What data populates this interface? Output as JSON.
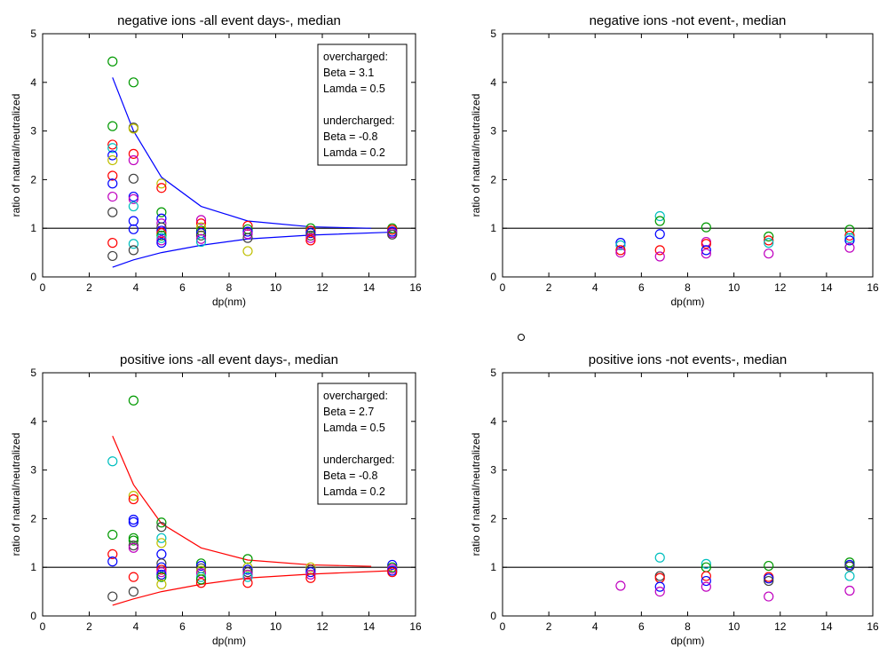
{
  "chart_data": [
    {
      "type": "scatter",
      "title": "negative ions -all event days-, median",
      "xlabel": "dp(nm)",
      "ylabel": "ratio of natural/neutralized",
      "xlim": [
        0,
        16
      ],
      "ylim": [
        0,
        5
      ],
      "xticks": [
        0,
        2,
        4,
        6,
        8,
        10,
        12,
        14,
        16
      ],
      "yticks": [
        0,
        1,
        2,
        3,
        4,
        5
      ],
      "grid": false,
      "reference_line_y": 1,
      "annotation": [
        "overcharged:",
        "Beta = 3.1",
        "Lamda = 0.5",
        "",
        "undercharged:",
        "Beta = -0.8",
        "Lamda = 0.2"
      ],
      "annotation_position": "top-right",
      "curve_color": "#0000ff",
      "fit_curves": [
        {
          "x": [
            3.0,
            3.9,
            5.1,
            6.8,
            8.8,
            11.5,
            14.1
          ],
          "y": [
            4.1,
            3.0,
            2.05,
            1.45,
            1.15,
            1.03,
            1.0
          ]
        },
        {
          "x": [
            3.0,
            3.9,
            5.1,
            6.8,
            8.8,
            11.5,
            15.0
          ],
          "y": [
            0.2,
            0.35,
            0.5,
            0.65,
            0.78,
            0.86,
            0.92
          ]
        }
      ],
      "points": [
        {
          "x": 3.0,
          "y": 4.43,
          "color": "#009900"
        },
        {
          "x": 3.0,
          "y": 3.1,
          "color": "#009900"
        },
        {
          "x": 3.0,
          "y": 2.72,
          "color": "#ff0000"
        },
        {
          "x": 3.0,
          "y": 2.65,
          "color": "#00bfbf"
        },
        {
          "x": 3.0,
          "y": 2.5,
          "color": "#0000ff"
        },
        {
          "x": 3.0,
          "y": 2.4,
          "color": "#bfbf00"
        },
        {
          "x": 3.0,
          "y": 2.08,
          "color": "#ff0000"
        },
        {
          "x": 3.0,
          "y": 1.92,
          "color": "#0000ff"
        },
        {
          "x": 3.0,
          "y": 1.65,
          "color": "#bf00bf"
        },
        {
          "x": 3.0,
          "y": 1.33,
          "color": "#404040"
        },
        {
          "x": 3.0,
          "y": 0.7,
          "color": "#ff0000"
        },
        {
          "x": 3.0,
          "y": 0.43,
          "color": "#404040"
        },
        {
          "x": 3.9,
          "y": 4.0,
          "color": "#009900"
        },
        {
          "x": 3.9,
          "y": 3.07,
          "color": "#404040"
        },
        {
          "x": 3.9,
          "y": 3.05,
          "color": "#bfbf00"
        },
        {
          "x": 3.9,
          "y": 2.53,
          "color": "#ff0000"
        },
        {
          "x": 3.9,
          "y": 2.4,
          "color": "#bf00bf"
        },
        {
          "x": 3.9,
          "y": 2.02,
          "color": "#404040"
        },
        {
          "x": 3.9,
          "y": 1.65,
          "color": "#0000ff"
        },
        {
          "x": 3.9,
          "y": 1.6,
          "color": "#bf00bf"
        },
        {
          "x": 3.9,
          "y": 1.45,
          "color": "#00bfbf"
        },
        {
          "x": 3.9,
          "y": 1.15,
          "color": "#0000ff"
        },
        {
          "x": 3.9,
          "y": 0.98,
          "color": "#0000ff"
        },
        {
          "x": 3.9,
          "y": 0.68,
          "color": "#00bfbf"
        },
        {
          "x": 3.9,
          "y": 0.55,
          "color": "#404040"
        },
        {
          "x": 5.1,
          "y": 1.92,
          "color": "#bfbf00"
        },
        {
          "x": 5.1,
          "y": 1.83,
          "color": "#ff0000"
        },
        {
          "x": 5.1,
          "y": 1.33,
          "color": "#009900"
        },
        {
          "x": 5.1,
          "y": 1.2,
          "color": "#0000ff"
        },
        {
          "x": 5.1,
          "y": 1.1,
          "color": "#bf00bf"
        },
        {
          "x": 5.1,
          "y": 1.02,
          "color": "#404040"
        },
        {
          "x": 5.1,
          "y": 0.95,
          "color": "#0000ff"
        },
        {
          "x": 5.1,
          "y": 0.9,
          "color": "#ff0000"
        },
        {
          "x": 5.1,
          "y": 0.85,
          "color": "#009900"
        },
        {
          "x": 5.1,
          "y": 0.8,
          "color": "#00bfbf"
        },
        {
          "x": 5.1,
          "y": 0.75,
          "color": "#bf00bf"
        },
        {
          "x": 5.1,
          "y": 0.7,
          "color": "#0000ff"
        },
        {
          "x": 6.8,
          "y": 1.17,
          "color": "#bf00bf"
        },
        {
          "x": 6.8,
          "y": 1.1,
          "color": "#ff0000"
        },
        {
          "x": 6.8,
          "y": 1.02,
          "color": "#bfbf00"
        },
        {
          "x": 6.8,
          "y": 0.95,
          "color": "#009900"
        },
        {
          "x": 6.8,
          "y": 0.9,
          "color": "#0000ff"
        },
        {
          "x": 6.8,
          "y": 0.85,
          "color": "#404040"
        },
        {
          "x": 6.8,
          "y": 0.78,
          "color": "#bf00bf"
        },
        {
          "x": 6.8,
          "y": 0.72,
          "color": "#00bfbf"
        },
        {
          "x": 8.8,
          "y": 1.05,
          "color": "#ff0000"
        },
        {
          "x": 8.8,
          "y": 0.98,
          "color": "#009900"
        },
        {
          "x": 8.8,
          "y": 0.93,
          "color": "#0000ff"
        },
        {
          "x": 8.8,
          "y": 0.88,
          "color": "#bf00bf"
        },
        {
          "x": 8.8,
          "y": 0.8,
          "color": "#404040"
        },
        {
          "x": 8.8,
          "y": 0.53,
          "color": "#bfbf00"
        },
        {
          "x": 11.5,
          "y": 1.0,
          "color": "#009900"
        },
        {
          "x": 11.5,
          "y": 0.95,
          "color": "#ff0000"
        },
        {
          "x": 11.5,
          "y": 0.9,
          "color": "#0000ff"
        },
        {
          "x": 11.5,
          "y": 0.85,
          "color": "#404040"
        },
        {
          "x": 11.5,
          "y": 0.8,
          "color": "#bf00bf"
        },
        {
          "x": 11.5,
          "y": 0.75,
          "color": "#ff0000"
        },
        {
          "x": 15.0,
          "y": 1.0,
          "color": "#009900"
        },
        {
          "x": 15.0,
          "y": 0.97,
          "color": "#ff0000"
        },
        {
          "x": 15.0,
          "y": 0.93,
          "color": "#0000ff"
        },
        {
          "x": 15.0,
          "y": 0.9,
          "color": "#bf00bf"
        },
        {
          "x": 15.0,
          "y": 0.87,
          "color": "#404040"
        }
      ]
    },
    {
      "type": "scatter",
      "title": "negative ions -not event-, median",
      "xlabel": "dp(nm)",
      "ylabel": "ratio of natural/neutralized",
      "xlim": [
        0,
        16
      ],
      "ylim": [
        0,
        5
      ],
      "xticks": [
        0,
        2,
        4,
        6,
        8,
        10,
        12,
        14,
        16
      ],
      "yticks": [
        0,
        1,
        2,
        3,
        4,
        5
      ],
      "grid": false,
      "reference_line_y": 1,
      "points": [
        {
          "x": 5.1,
          "y": 0.7,
          "color": "#0000ff"
        },
        {
          "x": 5.1,
          "y": 0.65,
          "color": "#00bfbf"
        },
        {
          "x": 5.1,
          "y": 0.55,
          "color": "#ff0000"
        },
        {
          "x": 5.1,
          "y": 0.5,
          "color": "#bf00bf"
        },
        {
          "x": 6.8,
          "y": 1.25,
          "color": "#00bfbf"
        },
        {
          "x": 6.8,
          "y": 1.15,
          "color": "#009900"
        },
        {
          "x": 6.8,
          "y": 0.88,
          "color": "#0000ff"
        },
        {
          "x": 6.8,
          "y": 0.55,
          "color": "#ff0000"
        },
        {
          "x": 6.8,
          "y": 0.42,
          "color": "#bf00bf"
        },
        {
          "x": 8.8,
          "y": 1.02,
          "color": "#009900"
        },
        {
          "x": 8.8,
          "y": 0.72,
          "color": "#bf00bf"
        },
        {
          "x": 8.8,
          "y": 0.68,
          "color": "#ff0000"
        },
        {
          "x": 8.8,
          "y": 0.55,
          "color": "#0000ff"
        },
        {
          "x": 8.8,
          "y": 0.48,
          "color": "#bf00bf"
        },
        {
          "x": 11.5,
          "y": 0.83,
          "color": "#009900"
        },
        {
          "x": 11.5,
          "y": 0.75,
          "color": "#ff0000"
        },
        {
          "x": 11.5,
          "y": 0.7,
          "color": "#00bfbf"
        },
        {
          "x": 11.5,
          "y": 0.48,
          "color": "#bf00bf"
        },
        {
          "x": 15.0,
          "y": 0.97,
          "color": "#009900"
        },
        {
          "x": 15.0,
          "y": 0.85,
          "color": "#ff0000"
        },
        {
          "x": 15.0,
          "y": 0.8,
          "color": "#00bfbf"
        },
        {
          "x": 15.0,
          "y": 0.75,
          "color": "#0000ff"
        },
        {
          "x": 15.0,
          "y": 0.6,
          "color": "#bf00bf"
        }
      ]
    },
    {
      "type": "scatter",
      "title": "positive ions -all event days-, median",
      "xlabel": "dp(nm)",
      "ylabel": "ratio of natural/neutralized",
      "xlim": [
        0,
        16
      ],
      "ylim": [
        0,
        5
      ],
      "xticks": [
        0,
        2,
        4,
        6,
        8,
        10,
        12,
        14,
        16
      ],
      "yticks": [
        0,
        1,
        2,
        3,
        4,
        5
      ],
      "grid": false,
      "reference_line_y": 1,
      "annotation": [
        "overcharged:",
        "Beta = 2.7",
        "Lamda = 0.5",
        "",
        "undercharged:",
        "Beta = -0.8",
        "Lamda = 0.2"
      ],
      "annotation_position": "top-right",
      "curve_color": "#ff0000",
      "fit_curves": [
        {
          "x": [
            3.0,
            3.9,
            5.1,
            6.8,
            8.8,
            11.5,
            14.1
          ],
          "y": [
            3.7,
            2.7,
            1.9,
            1.4,
            1.15,
            1.05,
            1.02
          ]
        },
        {
          "x": [
            3.0,
            3.9,
            5.1,
            6.8,
            8.8,
            11.5,
            15.0
          ],
          "y": [
            0.22,
            0.35,
            0.5,
            0.65,
            0.78,
            0.86,
            0.93
          ]
        }
      ],
      "points": [
        {
          "x": 3.0,
          "y": 3.18,
          "color": "#00bfbf"
        },
        {
          "x": 3.0,
          "y": 1.67,
          "color": "#009900"
        },
        {
          "x": 3.0,
          "y": 1.27,
          "color": "#ff0000"
        },
        {
          "x": 3.0,
          "y": 1.12,
          "color": "#0000ff"
        },
        {
          "x": 3.0,
          "y": 0.4,
          "color": "#404040"
        },
        {
          "x": 3.9,
          "y": 4.43,
          "color": "#009900"
        },
        {
          "x": 3.9,
          "y": 2.47,
          "color": "#bfbf00"
        },
        {
          "x": 3.9,
          "y": 2.4,
          "color": "#ff0000"
        },
        {
          "x": 3.9,
          "y": 1.98,
          "color": "#0000ff"
        },
        {
          "x": 3.9,
          "y": 1.93,
          "color": "#0000ff"
        },
        {
          "x": 3.9,
          "y": 1.6,
          "color": "#009900"
        },
        {
          "x": 3.9,
          "y": 1.55,
          "color": "#009900"
        },
        {
          "x": 3.9,
          "y": 1.45,
          "color": "#404040"
        },
        {
          "x": 3.9,
          "y": 1.4,
          "color": "#bf00bf"
        },
        {
          "x": 3.9,
          "y": 0.8,
          "color": "#ff0000"
        },
        {
          "x": 3.9,
          "y": 0.5,
          "color": "#404040"
        },
        {
          "x": 5.1,
          "y": 1.92,
          "color": "#009900"
        },
        {
          "x": 5.1,
          "y": 1.83,
          "color": "#404040"
        },
        {
          "x": 5.1,
          "y": 1.6,
          "color": "#00bfbf"
        },
        {
          "x": 5.1,
          "y": 1.5,
          "color": "#bfbf00"
        },
        {
          "x": 5.1,
          "y": 1.27,
          "color": "#0000ff"
        },
        {
          "x": 5.1,
          "y": 1.08,
          "color": "#404040"
        },
        {
          "x": 5.1,
          "y": 1.0,
          "color": "#0000ff"
        },
        {
          "x": 5.1,
          "y": 0.95,
          "color": "#ff0000"
        },
        {
          "x": 5.1,
          "y": 0.9,
          "color": "#bf00bf"
        },
        {
          "x": 5.1,
          "y": 0.85,
          "color": "#0000ff"
        },
        {
          "x": 5.1,
          "y": 0.8,
          "color": "#009900"
        },
        {
          "x": 5.1,
          "y": 0.65,
          "color": "#bfbf00"
        },
        {
          "x": 6.8,
          "y": 1.08,
          "color": "#009900"
        },
        {
          "x": 6.8,
          "y": 1.03,
          "color": "#0000ff"
        },
        {
          "x": 6.8,
          "y": 0.98,
          "color": "#404040"
        },
        {
          "x": 6.8,
          "y": 0.93,
          "color": "#bfbf00"
        },
        {
          "x": 6.8,
          "y": 0.88,
          "color": "#bf00bf"
        },
        {
          "x": 6.8,
          "y": 0.8,
          "color": "#00bfbf"
        },
        {
          "x": 6.8,
          "y": 0.75,
          "color": "#009900"
        },
        {
          "x": 6.8,
          "y": 0.68,
          "color": "#ff0000"
        },
        {
          "x": 8.8,
          "y": 1.17,
          "color": "#009900"
        },
        {
          "x": 8.8,
          "y": 1.0,
          "color": "#bfbf00"
        },
        {
          "x": 8.8,
          "y": 0.95,
          "color": "#0000ff"
        },
        {
          "x": 8.8,
          "y": 0.9,
          "color": "#404040"
        },
        {
          "x": 8.8,
          "y": 0.85,
          "color": "#bf00bf"
        },
        {
          "x": 8.8,
          "y": 0.8,
          "color": "#00bfbf"
        },
        {
          "x": 8.8,
          "y": 0.68,
          "color": "#ff0000"
        },
        {
          "x": 11.5,
          "y": 1.0,
          "color": "#bfbf00"
        },
        {
          "x": 11.5,
          "y": 0.95,
          "color": "#404040"
        },
        {
          "x": 11.5,
          "y": 0.9,
          "color": "#0000ff"
        },
        {
          "x": 11.5,
          "y": 0.85,
          "color": "#bf00bf"
        },
        {
          "x": 11.5,
          "y": 0.78,
          "color": "#ff0000"
        },
        {
          "x": 15.0,
          "y": 1.05,
          "color": "#0000ff"
        },
        {
          "x": 15.0,
          "y": 1.0,
          "color": "#009900"
        },
        {
          "x": 15.0,
          "y": 0.97,
          "color": "#bf00bf"
        },
        {
          "x": 15.0,
          "y": 0.93,
          "color": "#0000ff"
        },
        {
          "x": 15.0,
          "y": 0.9,
          "color": "#ff0000"
        }
      ]
    },
    {
      "type": "scatter",
      "title": "positive ions -not events-, median",
      "xlabel": "dp(nm)",
      "ylabel": "ratio of natural/neutralized",
      "xlim": [
        0,
        16
      ],
      "ylim": [
        0,
        5
      ],
      "xticks": [
        0,
        2,
        4,
        6,
        8,
        10,
        12,
        14,
        16
      ],
      "yticks": [
        0,
        1,
        2,
        3,
        4,
        5
      ],
      "grid": false,
      "reference_line_y": 1,
      "points": [
        {
          "x": 5.1,
          "y": 0.62,
          "color": "#bf00bf"
        },
        {
          "x": 6.8,
          "y": 1.2,
          "color": "#00bfbf"
        },
        {
          "x": 6.8,
          "y": 0.82,
          "color": "#404040"
        },
        {
          "x": 6.8,
          "y": 0.78,
          "color": "#ff0000"
        },
        {
          "x": 6.8,
          "y": 0.6,
          "color": "#0000ff"
        },
        {
          "x": 6.8,
          "y": 0.5,
          "color": "#bf00bf"
        },
        {
          "x": 8.8,
          "y": 1.07,
          "color": "#00bfbf"
        },
        {
          "x": 8.8,
          "y": 1.0,
          "color": "#009900"
        },
        {
          "x": 8.8,
          "y": 0.82,
          "color": "#ff0000"
        },
        {
          "x": 8.8,
          "y": 0.72,
          "color": "#0000ff"
        },
        {
          "x": 8.8,
          "y": 0.6,
          "color": "#bf00bf"
        },
        {
          "x": 11.5,
          "y": 1.03,
          "color": "#009900"
        },
        {
          "x": 11.5,
          "y": 0.8,
          "color": "#ff0000"
        },
        {
          "x": 11.5,
          "y": 0.77,
          "color": "#0000ff"
        },
        {
          "x": 11.5,
          "y": 0.72,
          "color": "#404040"
        },
        {
          "x": 11.5,
          "y": 0.4,
          "color": "#bf00bf"
        },
        {
          "x": 15.0,
          "y": 1.1,
          "color": "#009900"
        },
        {
          "x": 15.0,
          "y": 1.05,
          "color": "#0000ff"
        },
        {
          "x": 15.0,
          "y": 1.02,
          "color": "#404040"
        },
        {
          "x": 15.0,
          "y": 0.82,
          "color": "#00bfbf"
        },
        {
          "x": 15.0,
          "y": 0.52,
          "color": "#bf00bf"
        }
      ]
    }
  ]
}
